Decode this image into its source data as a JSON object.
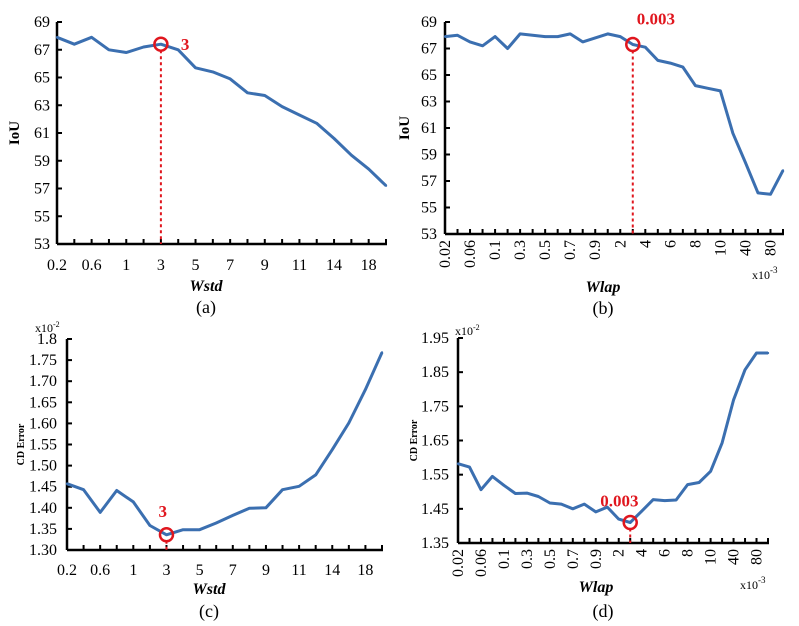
{
  "colors": {
    "line": "#3b6fb0",
    "highlight": "#e0161e",
    "axis": "#000000"
  },
  "chart_data": [
    {
      "id": "a",
      "type": "line",
      "caption": "(a)",
      "xlabel": "Wstd",
      "ylabel": "IoU",
      "categories": [
        "0.2",
        "0.4",
        "0.6",
        "0.8",
        "1",
        "2",
        "3",
        "4",
        "5",
        "6",
        "7",
        "8",
        "9",
        "10",
        "11",
        "12",
        "14",
        "16",
        "18",
        "20"
      ],
      "tick_labels": [
        "0.2",
        "",
        "0.6",
        "",
        "1",
        "",
        "3",
        "",
        "5",
        "",
        "7",
        "",
        "9",
        "",
        "11",
        "",
        "14",
        "",
        "18",
        ""
      ],
      "values": [
        67.9,
        67.4,
        67.9,
        67.0,
        66.8,
        67.2,
        67.4,
        67.0,
        65.7,
        65.4,
        64.9,
        63.9,
        63.7,
        62.9,
        62.3,
        61.7,
        60.6,
        59.4,
        58.4,
        57.2
      ],
      "yticks": [
        "53",
        "55",
        "57",
        "59",
        "61",
        "63",
        "65",
        "67",
        "69"
      ],
      "ylim": [
        53,
        69
      ],
      "highlight_index": 6,
      "highlight_label": "3",
      "multiplier": "",
      "x_multiplier": ""
    },
    {
      "id": "b",
      "type": "line",
      "caption": "(b)",
      "xlabel": "Wlap",
      "ylabel": "IoU",
      "categories": [
        "0.02",
        "0.04",
        "0.06",
        "0.08",
        "0.1",
        "0.2",
        "0.3",
        "0.4",
        "0.5",
        "0.6",
        "0.7",
        "0.8",
        "0.9",
        "1",
        "2",
        "3",
        "4",
        "5",
        "6",
        "7",
        "8",
        "9",
        "10",
        "20",
        "40",
        "60",
        "80",
        "100"
      ],
      "tick_labels": [
        "0.02",
        "",
        "0.06",
        "",
        "0.1",
        "",
        "0.3",
        "",
        "0.5",
        "",
        "0.7",
        "",
        "0.9",
        "",
        "2",
        "",
        "4",
        "",
        "6",
        "",
        "8",
        "",
        "10",
        "",
        "40",
        "",
        "80",
        ""
      ],
      "values": [
        67.9,
        68.0,
        67.5,
        67.2,
        67.9,
        67.0,
        68.1,
        68.0,
        67.9,
        67.9,
        68.1,
        67.5,
        67.8,
        68.1,
        67.9,
        67.3,
        67.1,
        66.1,
        65.9,
        65.6,
        64.2,
        64.0,
        63.8,
        60.6,
        58.4,
        56.1,
        56.0,
        57.8
      ],
      "yticks": [
        "53",
        "55",
        "57",
        "59",
        "61",
        "63",
        "65",
        "67",
        "69"
      ],
      "ylim": [
        53,
        69
      ],
      "highlight_index": 15,
      "highlight_label": "0.003",
      "multiplier": "",
      "x_multiplier": "x10",
      "x_multiplier_exp": "-3"
    },
    {
      "id": "c",
      "type": "line",
      "caption": "(c)",
      "xlabel": "Wstd",
      "ylabel": "CD Error",
      "categories": [
        "0.2",
        "0.4",
        "0.6",
        "0.8",
        "1",
        "2",
        "3",
        "4",
        "5",
        "6",
        "7",
        "8",
        "9",
        "10",
        "11",
        "12",
        "14",
        "16",
        "18",
        "20"
      ],
      "tick_labels": [
        "0.2",
        "",
        "0.6",
        "",
        "1",
        "",
        "3",
        "",
        "5",
        "",
        "7",
        "",
        "9",
        "",
        "11",
        "",
        "14",
        "",
        "18",
        ""
      ],
      "values": [
        1.457,
        1.443,
        1.389,
        1.441,
        1.414,
        1.358,
        1.336,
        1.348,
        1.348,
        1.364,
        1.382,
        1.399,
        1.4,
        1.443,
        1.451,
        1.478,
        1.538,
        1.601,
        1.68,
        1.768
      ],
      "yticks": [
        "1.30",
        "1.35",
        "1.40",
        "1.45",
        "1.50",
        "1.55",
        "1.60",
        "1.65",
        "1.70",
        "1.75",
        "1.8"
      ],
      "ylim": [
        1.3,
        1.8
      ],
      "highlight_index": 6,
      "highlight_label": "3",
      "multiplier": "x10",
      "multiplier_exp": "-2",
      "x_multiplier": ""
    },
    {
      "id": "d",
      "type": "line",
      "caption": "(d)",
      "xlabel": "Wlap",
      "ylabel": "CD Error",
      "categories": [
        "0.02",
        "0.04",
        "0.06",
        "0.08",
        "0.1",
        "0.2",
        "0.3",
        "0.4",
        "0.5",
        "0.6",
        "0.7",
        "0.8",
        "0.9",
        "1",
        "2",
        "3",
        "4",
        "5",
        "6",
        "7",
        "8",
        "9",
        "10",
        "20",
        "40",
        "60",
        "80",
        "100"
      ],
      "tick_labels": [
        "0.02",
        "",
        "0.06",
        "",
        "0.1",
        "",
        "0.3",
        "",
        "0.5",
        "",
        "0.7",
        "",
        "0.9",
        "",
        "2",
        "",
        "4",
        "",
        "6",
        "",
        "8",
        "",
        "10",
        "",
        "40",
        "",
        "80",
        ""
      ],
      "values": [
        1.582,
        1.572,
        1.506,
        1.545,
        1.519,
        1.495,
        1.496,
        1.486,
        1.467,
        1.464,
        1.45,
        1.464,
        1.441,
        1.455,
        1.42,
        1.41,
        1.443,
        1.477,
        1.474,
        1.476,
        1.521,
        1.527,
        1.56,
        1.643,
        1.769,
        1.857,
        1.906,
        1.906
      ],
      "yticks": [
        "1.35",
        "1.45",
        "1.55",
        "1.65",
        "1.75",
        "1.85",
        "1.95"
      ],
      "ylim": [
        1.35,
        1.95
      ],
      "highlight_index": 15,
      "highlight_label": "0.003",
      "multiplier": "x10",
      "multiplier_exp": "-2",
      "x_multiplier": "x10",
      "x_multiplier_exp": "-3"
    }
  ]
}
